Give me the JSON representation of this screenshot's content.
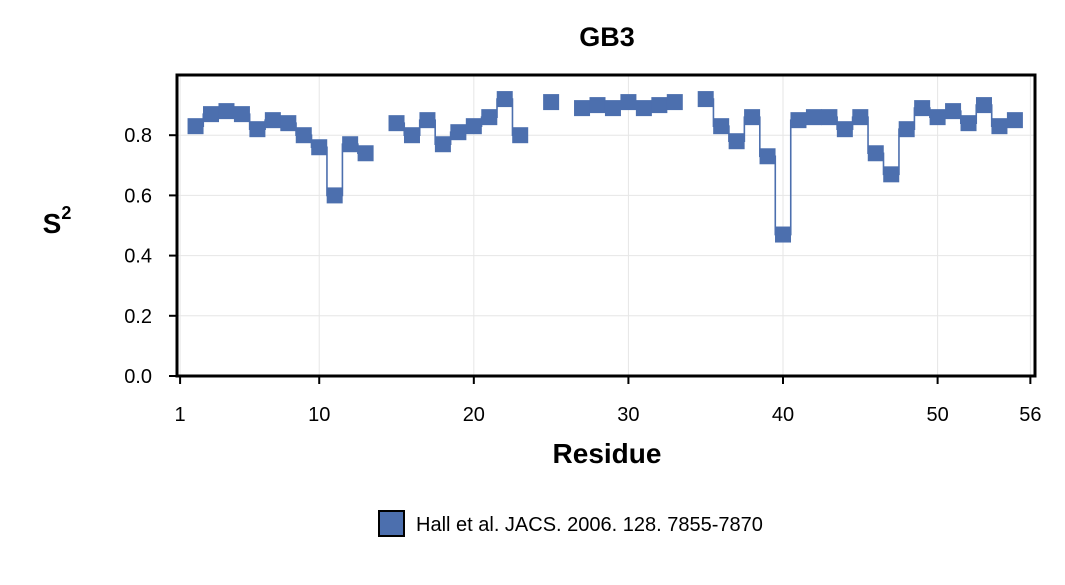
{
  "chart_data": {
    "type": "line",
    "title": "GB3",
    "xlabel": "Residue",
    "ylabel": "S",
    "ylabel_superscript": "2",
    "xlim": [
      0.8,
      56.3
    ],
    "ylim": [
      0.0,
      1.0
    ],
    "xticks": [
      1,
      10,
      20,
      30,
      40,
      50,
      56
    ],
    "yticks": [
      0.0,
      0.2,
      0.4,
      0.6,
      0.8
    ],
    "ytick_labels": [
      "0.0",
      "0.2",
      "0.4",
      "0.6",
      "0.8"
    ],
    "grid": true,
    "legend_position": "bottom-center",
    "series": [
      {
        "name": "Hall et al. JACS. 2006. 128. 7855-7870",
        "color": "#4c6fae",
        "style": "step",
        "marker": "square",
        "x": [
          2,
          3,
          4,
          5,
          6,
          7,
          8,
          9,
          10,
          11,
          12,
          13,
          14,
          15,
          16,
          17,
          18,
          19,
          20,
          21,
          22,
          23,
          24,
          25,
          26,
          27,
          28,
          29,
          30,
          31,
          32,
          33,
          34,
          35,
          36,
          37,
          38,
          39,
          40,
          41,
          42,
          43,
          44,
          45,
          46,
          47,
          48,
          49,
          50,
          51,
          52,
          53,
          54,
          55,
          56
        ],
        "y": [
          0.83,
          0.87,
          0.88,
          0.87,
          0.82,
          0.85,
          0.84,
          0.8,
          0.76,
          0.6,
          0.77,
          0.74,
          null,
          0.84,
          0.8,
          0.85,
          0.77,
          0.81,
          0.83,
          0.86,
          0.92,
          0.8,
          null,
          0.91,
          null,
          0.89,
          0.9,
          0.89,
          0.91,
          0.89,
          0.9,
          0.91,
          null,
          0.92,
          0.83,
          0.78,
          0.86,
          0.73,
          0.47,
          0.85,
          0.86,
          0.86,
          0.82,
          0.86,
          0.74,
          0.67,
          0.82,
          0.89,
          0.86,
          0.88,
          0.84,
          0.9,
          0.83,
          0.85,
          null
        ]
      }
    ]
  }
}
